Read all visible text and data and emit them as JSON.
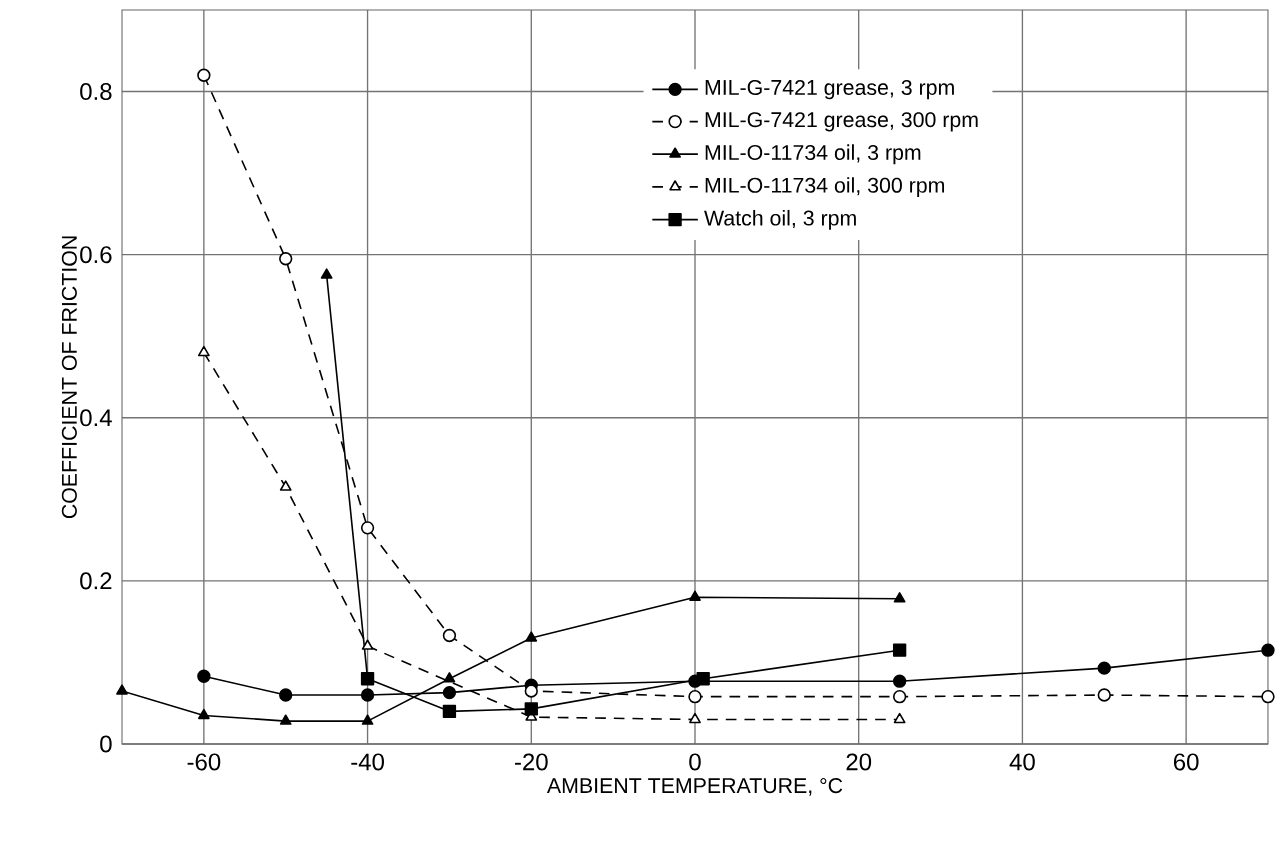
{
  "chart_data": {
    "type": "line",
    "xlabel": "AMBIENT TEMPERATURE, °C",
    "ylabel": "COEFFICIENT OF FRICTION",
    "xlim": [
      -70,
      70
    ],
    "xticks": [
      -60,
      -40,
      -20,
      0,
      20,
      40,
      60
    ],
    "ylim": [
      0,
      0.9
    ],
    "yticks": [
      0,
      0.2,
      0.4,
      0.6,
      0.8
    ],
    "grid": true,
    "legend": "top right",
    "series": [
      {
        "name": "MIL-G-7421 grease, 3 rpm",
        "color": "#000000",
        "marker": "circle",
        "line_style": "solid",
        "x": [
          -60,
          -50,
          -40,
          -30,
          -20,
          0,
          25,
          50,
          70
        ],
        "values": [
          0.083,
          0.06,
          0.06,
          0.063,
          0.072,
          0.077,
          0.077,
          0.093,
          0.115
        ]
      },
      {
        "name": "MIL-G-7421 grease, 300 rpm",
        "color": "#000000",
        "marker": "circle",
        "line_style": "dashed",
        "x": [
          -60,
          -50,
          -40,
          -30,
          -20,
          0,
          25,
          50,
          70
        ],
        "values": [
          0.82,
          0.595,
          0.265,
          0.133,
          0.065,
          0.058,
          0.058,
          0.06,
          0.058
        ]
      },
      {
        "name": "MIL-O-11734 oil, 3 rpm",
        "color": "#000000",
        "marker": "triangle",
        "line_style": "solid",
        "x": [
          -70,
          -60,
          -50,
          -40,
          -30,
          -20,
          0,
          25
        ],
        "values": [
          0.065,
          0.035,
          0.028,
          0.028,
          0.08,
          0.13,
          0.18,
          0.178
        ]
      },
      {
        "name": "MIL-O-11734 oil, 300 rpm",
        "color": "#000000",
        "marker": "triangle",
        "line_style": "dashed",
        "x": [
          -60,
          -50,
          -40,
          -30,
          -20,
          0,
          25
        ],
        "values": [
          0.48,
          0.315,
          0.12,
          null,
          0.033,
          0.03,
          0.03
        ]
      },
      {
        "name": "Watch oil, 3 rpm",
        "color": "#000000",
        "marker": "square",
        "line_style": "solid",
        "x": [
          -40,
          -30,
          -20,
          1,
          25
        ],
        "values": [
          0.08,
          0.04,
          0.043,
          0.08,
          0.115
        ]
      },
      {
        "color": "#000000",
        "marker": "triangle",
        "line_style": "solid",
        "x": [
          -45,
          -40
        ],
        "values": [
          0.575,
          0.08
        ]
      }
    ]
  }
}
